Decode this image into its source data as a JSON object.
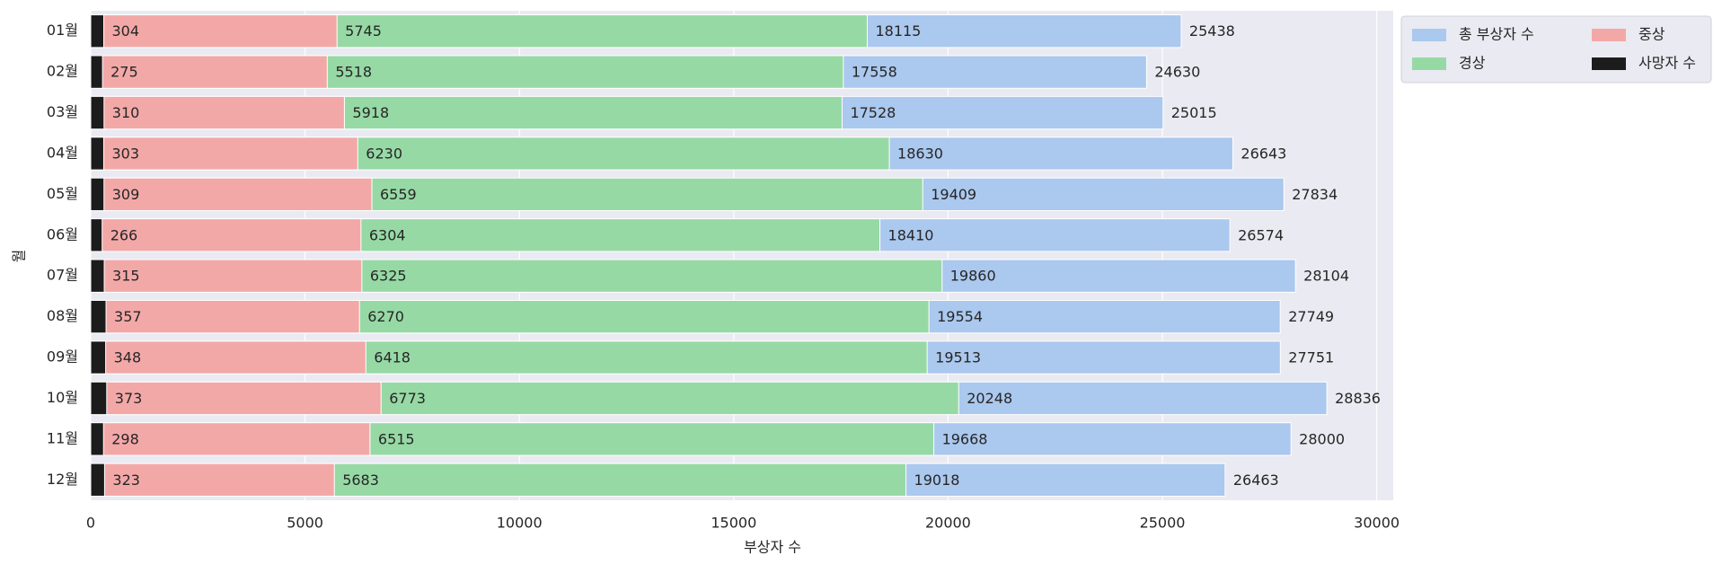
{
  "chart_data": {
    "type": "bar",
    "orientation": "horizontal",
    "xlabel": "부상자 수",
    "ylabel": "월",
    "categories": [
      "01월",
      "02월",
      "03월",
      "04월",
      "05월",
      "06월",
      "07월",
      "08월",
      "09월",
      "10월",
      "11월",
      "12월"
    ],
    "series": [
      {
        "name": "총 부상자 수",
        "color": "#abc8ee",
        "values": [
          25438,
          24630,
          25015,
          26643,
          27834,
          26574,
          28104,
          27749,
          27751,
          28836,
          28000,
          26463
        ]
      },
      {
        "name": "경상",
        "color": "#97d9a5",
        "values": [
          18115,
          17558,
          17528,
          18630,
          19409,
          18410,
          19860,
          19554,
          19513,
          20248,
          19668,
          19018
        ]
      },
      {
        "name": "중상",
        "color": "#f3a8a8",
        "values": [
          5745,
          5518,
          5918,
          6230,
          6559,
          6304,
          6325,
          6270,
          6418,
          6773,
          6515,
          5683
        ]
      },
      {
        "name": "사망자 수",
        "color": "#1c1c1c",
        "values": [
          304,
          275,
          310,
          303,
          309,
          266,
          315,
          357,
          348,
          373,
          298,
          323
        ]
      }
    ],
    "xlim": [
      0,
      30385
    ],
    "xticks": [
      0,
      5000,
      10000,
      15000,
      20000,
      25000,
      30000
    ],
    "grid": true,
    "legend": "upper right"
  }
}
